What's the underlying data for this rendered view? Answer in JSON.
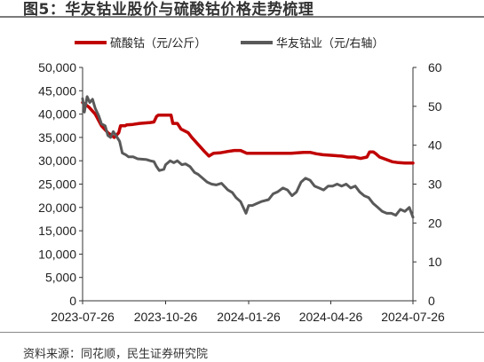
{
  "title": "图5：华友钴业股价与硫酸钴价格走势梳理",
  "source": "资料来源：同花顺，民生证券研究院",
  "chart_data": {
    "type": "line",
    "x_tick_labels": [
      "2023-07-26",
      "2023-10-26",
      "2024-01-26",
      "2024-04-26",
      "2024-07-26"
    ],
    "x_range": [
      "2023-07-26",
      "2024-07-26"
    ],
    "y_left": {
      "min": 0,
      "max": 50000,
      "ticks": [
        "0",
        "5,000",
        "10,000",
        "15,000",
        "20,000",
        "25,000",
        "30,000",
        "35,000",
        "40,000",
        "45,000",
        "50,000"
      ]
    },
    "y_right": {
      "min": 0,
      "max": 60,
      "ticks": [
        "0",
        "10",
        "20",
        "30",
        "40",
        "50",
        "60"
      ]
    },
    "grid": false,
    "legend_position": "top",
    "series": [
      {
        "name": "硫酸钴（元/公斤）",
        "axis": "left",
        "color": "#c00000",
        "points": [
          [
            "2023-07-26",
            42500
          ],
          [
            "2023-08-02",
            41500
          ],
          [
            "2023-08-09",
            40000
          ],
          [
            "2023-08-16",
            37500
          ],
          [
            "2023-08-23",
            36000
          ],
          [
            "2023-08-30",
            35000
          ],
          [
            "2023-09-04",
            36000
          ],
          [
            "2023-09-06",
            37500
          ],
          [
            "2023-09-11",
            37500
          ],
          [
            "2023-09-13",
            37700
          ],
          [
            "2023-09-20",
            37800
          ],
          [
            "2023-09-27",
            38000
          ],
          [
            "2023-10-09",
            38200
          ],
          [
            "2023-10-13",
            38300
          ],
          [
            "2023-10-16",
            39500
          ],
          [
            "2023-10-18",
            39800
          ],
          [
            "2023-10-25",
            39800
          ],
          [
            "2023-11-01",
            39800
          ],
          [
            "2023-11-03",
            38000
          ],
          [
            "2023-11-08",
            38000
          ],
          [
            "2023-11-12",
            36800
          ],
          [
            "2023-11-20",
            36000
          ],
          [
            "2023-11-24",
            35000
          ],
          [
            "2023-12-01",
            33500
          ],
          [
            "2023-12-08",
            32000
          ],
          [
            "2023-12-13",
            31000
          ],
          [
            "2023-12-18",
            31600
          ],
          [
            "2023-12-25",
            31700
          ],
          [
            "2024-01-03",
            32000
          ],
          [
            "2024-01-10",
            32200
          ],
          [
            "2024-01-17",
            32200
          ],
          [
            "2024-01-24",
            31600
          ],
          [
            "2024-02-07",
            31600
          ],
          [
            "2024-02-28",
            31600
          ],
          [
            "2024-03-13",
            31600
          ],
          [
            "2024-03-20",
            31700
          ],
          [
            "2024-03-27",
            31800
          ],
          [
            "2024-04-03",
            31800
          ],
          [
            "2024-04-10",
            31500
          ],
          [
            "2024-04-17",
            31300
          ],
          [
            "2024-04-24",
            31200
          ],
          [
            "2024-05-01",
            31100
          ],
          [
            "2024-05-08",
            31000
          ],
          [
            "2024-05-15",
            30800
          ],
          [
            "2024-05-22",
            30800
          ],
          [
            "2024-05-29",
            30500
          ],
          [
            "2024-06-05",
            30800
          ],
          [
            "2024-06-08",
            31900
          ],
          [
            "2024-06-12",
            31900
          ],
          [
            "2024-06-15",
            31500
          ],
          [
            "2024-06-19",
            30800
          ],
          [
            "2024-06-26",
            30300
          ],
          [
            "2024-07-03",
            29800
          ],
          [
            "2024-07-10",
            29600
          ],
          [
            "2024-07-17",
            29500
          ],
          [
            "2024-07-26",
            29500
          ]
        ]
      },
      {
        "name": "华友钴业（元/右轴）",
        "axis": "right",
        "color": "#595959",
        "points": [
          [
            "2023-07-26",
            52.0
          ],
          [
            "2023-07-28",
            48.5
          ],
          [
            "2023-07-31",
            52.5
          ],
          [
            "2023-08-03",
            51.0
          ],
          [
            "2023-08-06",
            51.8
          ],
          [
            "2023-08-09",
            49.5
          ],
          [
            "2023-08-13",
            47.5
          ],
          [
            "2023-08-16",
            45.5
          ],
          [
            "2023-08-20",
            45.0
          ],
          [
            "2023-08-23",
            42.5
          ],
          [
            "2023-08-26",
            42.0
          ],
          [
            "2023-08-29",
            43.5
          ],
          [
            "2023-09-01",
            42.5
          ],
          [
            "2023-09-05",
            41.0
          ],
          [
            "2023-09-08",
            38.0
          ],
          [
            "2023-09-12",
            37.5
          ],
          [
            "2023-09-15",
            37.0
          ],
          [
            "2023-09-20",
            37.0
          ],
          [
            "2023-09-25",
            36.5
          ],
          [
            "2023-10-05",
            36.3
          ],
          [
            "2023-10-09",
            36.0
          ],
          [
            "2023-10-13",
            35.8
          ],
          [
            "2023-10-16",
            34.5
          ],
          [
            "2023-10-19",
            33.5
          ],
          [
            "2023-10-24",
            33.8
          ],
          [
            "2023-10-26",
            35.0
          ],
          [
            "2023-10-31",
            36.0
          ],
          [
            "2023-11-04",
            35.5
          ],
          [
            "2023-11-08",
            36.0
          ],
          [
            "2023-11-13",
            35.0
          ],
          [
            "2023-11-17",
            35.2
          ],
          [
            "2023-11-22",
            34.5
          ],
          [
            "2023-11-27",
            33.0
          ],
          [
            "2023-12-01",
            32.5
          ],
          [
            "2023-12-06",
            31.5
          ],
          [
            "2023-12-11",
            30.5
          ],
          [
            "2023-12-16",
            30.0
          ],
          [
            "2023-12-21",
            29.8
          ],
          [
            "2023-12-27",
            30.2
          ],
          [
            "2024-01-03",
            28.5
          ],
          [
            "2024-01-08",
            27.8
          ],
          [
            "2024-01-12",
            26.5
          ],
          [
            "2024-01-17",
            25.5
          ],
          [
            "2024-01-20",
            24.0
          ],
          [
            "2024-01-23",
            22.5
          ],
          [
            "2024-01-26",
            24.5
          ],
          [
            "2024-01-30",
            24.5
          ],
          [
            "2024-02-04",
            25.0
          ],
          [
            "2024-02-09",
            25.5
          ],
          [
            "2024-02-17",
            26.0
          ],
          [
            "2024-02-22",
            27.5
          ],
          [
            "2024-02-27",
            28.0
          ],
          [
            "2024-03-04",
            29.0
          ],
          [
            "2024-03-09",
            28.5
          ],
          [
            "2024-03-14",
            27.0
          ],
          [
            "2024-03-19",
            28.0
          ],
          [
            "2024-03-24",
            30.5
          ],
          [
            "2024-03-29",
            31.5
          ],
          [
            "2024-04-03",
            31.0
          ],
          [
            "2024-04-08",
            29.5
          ],
          [
            "2024-04-13",
            29.0
          ],
          [
            "2024-04-18",
            28.5
          ],
          [
            "2024-04-23",
            29.5
          ],
          [
            "2024-04-28",
            29.5
          ],
          [
            "2024-05-03",
            30.0
          ],
          [
            "2024-05-08",
            29.5
          ],
          [
            "2024-05-13",
            30.0
          ],
          [
            "2024-05-18",
            29.0
          ],
          [
            "2024-05-23",
            29.5
          ],
          [
            "2024-05-28",
            28.0
          ],
          [
            "2024-06-02",
            27.0
          ],
          [
            "2024-06-07",
            26.5
          ],
          [
            "2024-06-12",
            25.0
          ],
          [
            "2024-06-17",
            24.0
          ],
          [
            "2024-06-22",
            23.0
          ],
          [
            "2024-06-27",
            22.5
          ],
          [
            "2024-07-02",
            22.5
          ],
          [
            "2024-07-07",
            22.0
          ],
          [
            "2024-07-12",
            23.5
          ],
          [
            "2024-07-17",
            23.0
          ],
          [
            "2024-07-22",
            24.0
          ],
          [
            "2024-07-26",
            21.5
          ]
        ]
      }
    ]
  }
}
